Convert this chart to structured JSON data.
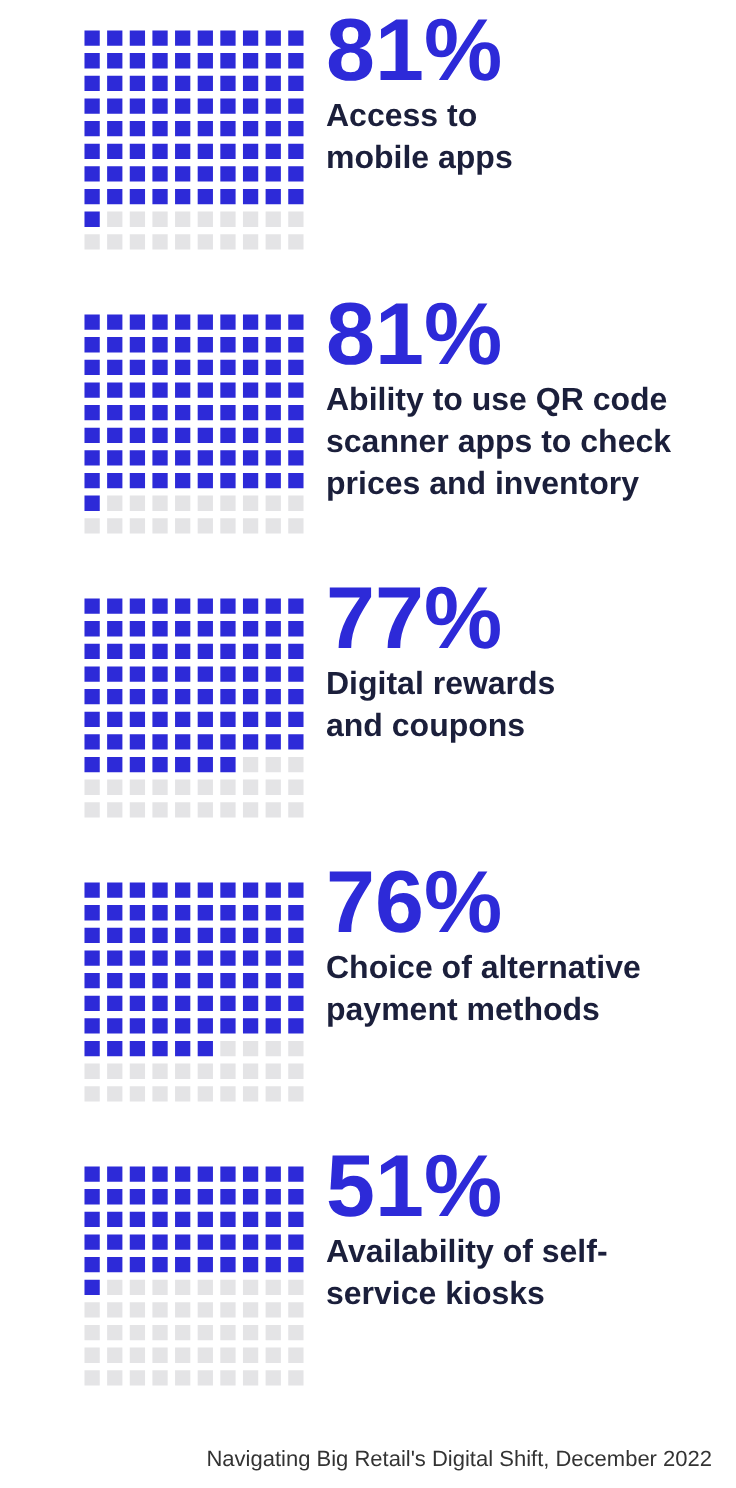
{
  "chart_data": [
    {
      "type": "other",
      "categories": [
        "Access to mobile apps"
      ],
      "values": [
        81
      ],
      "value_labels": [
        "81%"
      ],
      "color": "#2d2ad8"
    },
    {
      "type": "other",
      "categories": [
        "Ability to use QR code scanner apps to check prices and inventory"
      ],
      "values": [
        81
      ],
      "value_labels": [
        "81%"
      ],
      "color": "#2d2ad8"
    },
    {
      "type": "other",
      "categories": [
        "Digital rewards and coupons"
      ],
      "values": [
        77
      ],
      "value_labels": [
        "77%"
      ],
      "color": "#2d2ad8"
    },
    {
      "type": "other",
      "categories": [
        "Choice of alternative payment methods"
      ],
      "values": [
        76
      ],
      "value_labels": [
        "76%"
      ],
      "color": "#2d2ad8"
    },
    {
      "type": "other",
      "categories": [
        "Availability of self-service kiosks"
      ],
      "values": [
        51
      ],
      "value_labels": [
        "51%"
      ],
      "color": "#2d2ad8",
      "annotations": [
        "Navigating Big Retail's Digital Shift, December 2022"
      ]
    }
  ]
}
